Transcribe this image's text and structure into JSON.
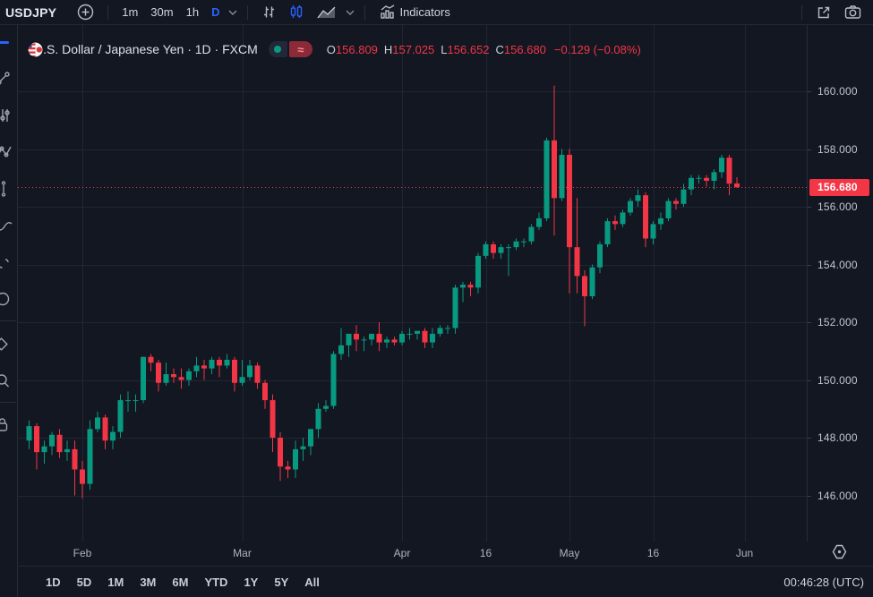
{
  "top_toolbar": {
    "symbol": "USDJPY",
    "intervals": {
      "m1": "1m",
      "m30": "30m",
      "h1": "1h",
      "d": "D"
    },
    "indicators_label": "Indicators"
  },
  "legend": {
    "title": "U.S. Dollar / Japanese Yen · 1D · FXCM",
    "ohlc": {
      "labels": [
        "O",
        "H",
        "L",
        "C"
      ],
      "open": "156.809",
      "high": "157.025",
      "low": "156.652",
      "close": "156.680",
      "change": "−0.129 (−0.08%)"
    }
  },
  "price_axis": {
    "last_price_label": "156.680"
  },
  "bottom_toolbar": {
    "ranges": [
      "1D",
      "5D",
      "1M",
      "3M",
      "6M",
      "YTD",
      "1Y",
      "5Y",
      "All"
    ],
    "timestamp": "00:46:28 (UTC)"
  },
  "colors": {
    "background": "#131722",
    "grid": "#212634",
    "up": "#089981",
    "down": "#f23645",
    "accent_blue": "#2962ff",
    "last_price_bg": "#f23645"
  },
  "icons": [
    "plus-circle-icon",
    "chevron-down-icon",
    "bar-style-icon",
    "candle-style-icon",
    "area-style-icon",
    "indicators-icon",
    "external-link-icon",
    "camera-icon",
    "market-open-dot-icon",
    "delayed-data-icon",
    "flag-usdjpy-icon",
    "pane-settings-octagon-icon"
  ],
  "chart_data": {
    "type": "candlestick",
    "title": "U.S. Dollar / Japanese Yen",
    "timeframe": "1D",
    "exchange": "FXCM",
    "symbol": "USDJPY",
    "grid": true,
    "y_axis_side": "right",
    "y_visible_range": [
      144.4,
      162.3
    ],
    "y_ticks": [
      "160.000",
      "158.000",
      "156.000",
      "154.000",
      "152.000",
      "150.000",
      "148.000",
      "146.000"
    ],
    "x_gridlines": [
      {
        "label": "Feb",
        "index": 7
      },
      {
        "label": "Mar",
        "index": 28
      },
      {
        "label": "Apr",
        "index": 49
      },
      {
        "label": "16",
        "index": 60
      },
      {
        "label": "May",
        "index": 71
      },
      {
        "label": "16",
        "index": 82
      },
      {
        "label": "Jun",
        "index": 94
      }
    ],
    "last_price": 156.68,
    "current_bar": {
      "open": 156.809,
      "high": 157.025,
      "low": 156.652,
      "close": 156.68,
      "change": -0.129,
      "change_pct": -0.08
    },
    "candles": [
      [
        147.9,
        148.6,
        147.6,
        148.4
      ],
      [
        148.4,
        148.5,
        146.9,
        147.5
      ],
      [
        147.5,
        147.9,
        147.1,
        147.7
      ],
      [
        147.7,
        148.2,
        147.4,
        148.1
      ],
      [
        148.1,
        148.3,
        147.3,
        147.5
      ],
      [
        147.5,
        147.9,
        147.2,
        147.6
      ],
      [
        147.6,
        147.9,
        146.0,
        146.9
      ],
      [
        146.9,
        147.2,
        145.9,
        146.4
      ],
      [
        146.4,
        148.6,
        146.2,
        148.3
      ],
      [
        148.3,
        148.9,
        148.2,
        148.7
      ],
      [
        148.7,
        148.8,
        147.6,
        147.9
      ],
      [
        147.9,
        148.4,
        147.6,
        148.2
      ],
      [
        148.2,
        149.5,
        148.0,
        149.3
      ],
      [
        149.3,
        149.6,
        148.9,
        149.3
      ],
      [
        149.3,
        149.5,
        148.9,
        149.3
      ],
      [
        149.3,
        150.8,
        149.2,
        150.8
      ],
      [
        150.8,
        150.9,
        150.3,
        150.6
      ],
      [
        150.6,
        150.7,
        149.6,
        149.9
      ],
      [
        149.9,
        150.6,
        149.8,
        150.2
      ],
      [
        150.2,
        150.4,
        149.9,
        150.1
      ],
      [
        150.1,
        150.4,
        149.7,
        150.0
      ],
      [
        150.0,
        150.4,
        149.8,
        150.3
      ],
      [
        150.3,
        150.8,
        150.1,
        150.5
      ],
      [
        150.5,
        150.7,
        150.0,
        150.4
      ],
      [
        150.4,
        150.8,
        150.2,
        150.7
      ],
      [
        150.7,
        150.8,
        150.1,
        150.5
      ],
      [
        150.5,
        150.9,
        150.4,
        150.7
      ],
      [
        150.7,
        150.8,
        149.6,
        149.9
      ],
      [
        149.9,
        150.7,
        149.8,
        150.1
      ],
      [
        150.1,
        150.7,
        150.0,
        150.5
      ],
      [
        150.5,
        150.6,
        149.7,
        149.9
      ],
      [
        149.9,
        150.0,
        149.0,
        149.3
      ],
      [
        149.3,
        149.5,
        147.5,
        148.0
      ],
      [
        148.0,
        148.2,
        146.5,
        147.0
      ],
      [
        147.0,
        147.2,
        146.6,
        146.9
      ],
      [
        146.9,
        147.9,
        146.6,
        147.6
      ],
      [
        147.6,
        148.0,
        147.2,
        147.7
      ],
      [
        147.7,
        148.3,
        147.4,
        148.3
      ],
      [
        148.3,
        149.2,
        148.0,
        149.0
      ],
      [
        149.0,
        149.3,
        148.9,
        149.1
      ],
      [
        149.1,
        151.0,
        149.0,
        150.9
      ],
      [
        150.9,
        151.8,
        150.7,
        151.2
      ],
      [
        151.2,
        151.6,
        150.8,
        151.6
      ],
      [
        151.6,
        151.9,
        151.0,
        151.4
      ],
      [
        151.4,
        151.5,
        151.0,
        151.4
      ],
      [
        151.4,
        151.6,
        151.2,
        151.6
      ],
      [
        151.6,
        152.0,
        151.0,
        151.3
      ],
      [
        151.3,
        151.5,
        151.1,
        151.4
      ],
      [
        151.4,
        151.5,
        151.2,
        151.3
      ],
      [
        151.3,
        151.7,
        151.2,
        151.6
      ],
      [
        151.6,
        151.8,
        151.4,
        151.6
      ],
      [
        151.6,
        151.7,
        151.4,
        151.7
      ],
      [
        151.7,
        151.8,
        151.1,
        151.3
      ],
      [
        151.3,
        151.8,
        151.1,
        151.6
      ],
      [
        151.6,
        151.9,
        151.5,
        151.8
      ],
      [
        151.8,
        151.9,
        151.6,
        151.8
      ],
      [
        151.8,
        153.3,
        151.6,
        153.2
      ],
      [
        153.2,
        153.4,
        152.7,
        153.3
      ],
      [
        153.3,
        153.4,
        152.9,
        153.2
      ],
      [
        153.2,
        154.4,
        153.0,
        154.3
      ],
      [
        154.3,
        154.8,
        154.2,
        154.7
      ],
      [
        154.7,
        154.8,
        154.2,
        154.4
      ],
      [
        154.4,
        154.7,
        154.2,
        154.6
      ],
      [
        154.6,
        154.7,
        153.6,
        154.6
      ],
      [
        154.6,
        154.9,
        154.5,
        154.8
      ],
      [
        154.8,
        154.9,
        154.6,
        154.8
      ],
      [
        154.8,
        155.4,
        154.7,
        155.3
      ],
      [
        155.3,
        155.8,
        155.2,
        155.6
      ],
      [
        155.6,
        158.4,
        155.5,
        158.3
      ],
      [
        158.3,
        160.2,
        155.0,
        156.3
      ],
      [
        156.3,
        158.0,
        156.2,
        157.8
      ],
      [
        157.8,
        158.0,
        153.0,
        154.6
      ],
      [
        154.6,
        156.3,
        153.0,
        153.6
      ],
      [
        153.6,
        153.8,
        151.86,
        152.9
      ],
      [
        152.9,
        154.0,
        152.8,
        153.9
      ],
      [
        153.9,
        154.8,
        153.7,
        154.7
      ],
      [
        154.7,
        155.6,
        154.6,
        155.5
      ],
      [
        155.5,
        155.7,
        155.2,
        155.4
      ],
      [
        155.4,
        155.9,
        155.3,
        155.8
      ],
      [
        155.8,
        156.3,
        155.7,
        156.2
      ],
      [
        156.2,
        156.6,
        156.0,
        156.4
      ],
      [
        156.4,
        156.5,
        154.6,
        154.9
      ],
      [
        154.9,
        155.5,
        154.7,
        155.4
      ],
      [
        155.4,
        155.8,
        155.2,
        155.6
      ],
      [
        155.6,
        156.3,
        155.5,
        156.2
      ],
      [
        156.2,
        156.3,
        155.9,
        156.1
      ],
      [
        156.1,
        156.8,
        156.0,
        156.6
      ],
      [
        156.6,
        157.1,
        156.4,
        157.0
      ],
      [
        157.0,
        157.1,
        156.8,
        157.0
      ],
      [
        157.0,
        157.1,
        156.7,
        156.9
      ],
      [
        156.9,
        157.3,
        156.6,
        157.2
      ],
      [
        157.2,
        157.8,
        157.0,
        157.7
      ],
      [
        157.7,
        157.8,
        156.4,
        156.8
      ],
      [
        156.809,
        157.025,
        156.652,
        156.68
      ]
    ]
  }
}
